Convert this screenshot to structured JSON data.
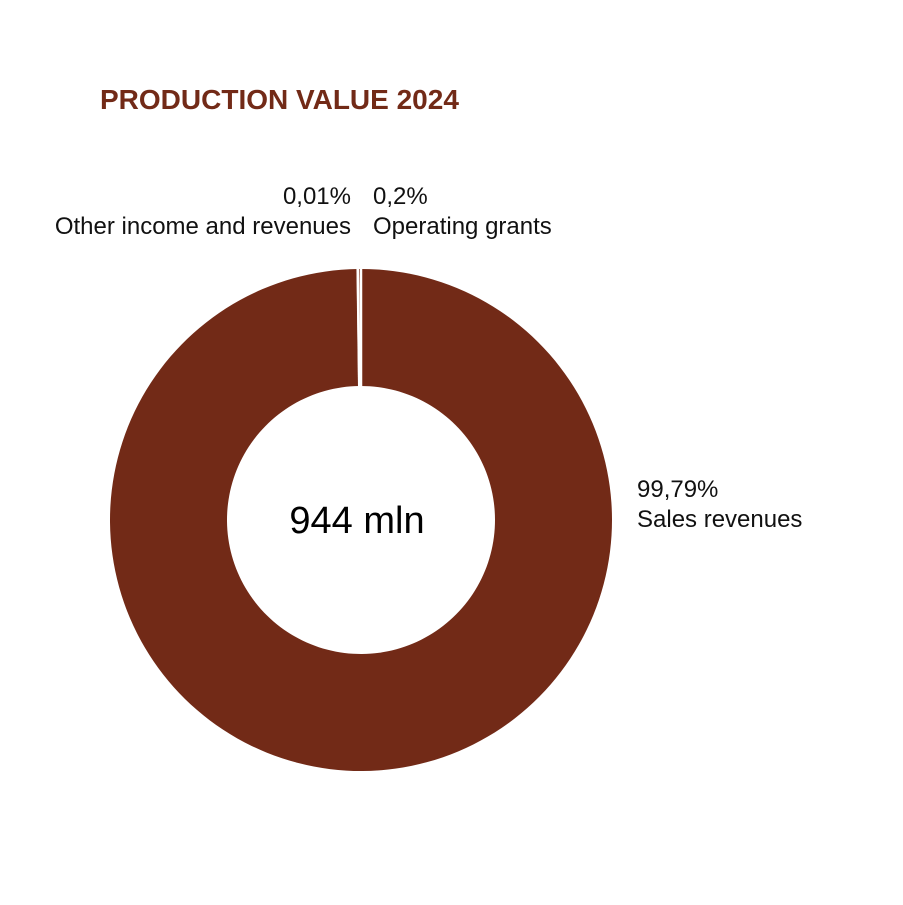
{
  "chart_data": {
    "type": "pie",
    "title": "PRODUCTION VALUE 2024",
    "center_label": "944 mln",
    "colors": {
      "slice": "#722a17",
      "separator": "#ffffff",
      "title": "#722a17",
      "label": "#111111"
    },
    "slices": [
      {
        "label": "Sales revenues",
        "value": 99.79,
        "value_label": "99,79%"
      },
      {
        "label": "Other income and revenues",
        "value": 0.01,
        "value_label": "0,01%"
      },
      {
        "label": "Operating grants",
        "value": 0.2,
        "value_label": "0,2%"
      }
    ]
  }
}
